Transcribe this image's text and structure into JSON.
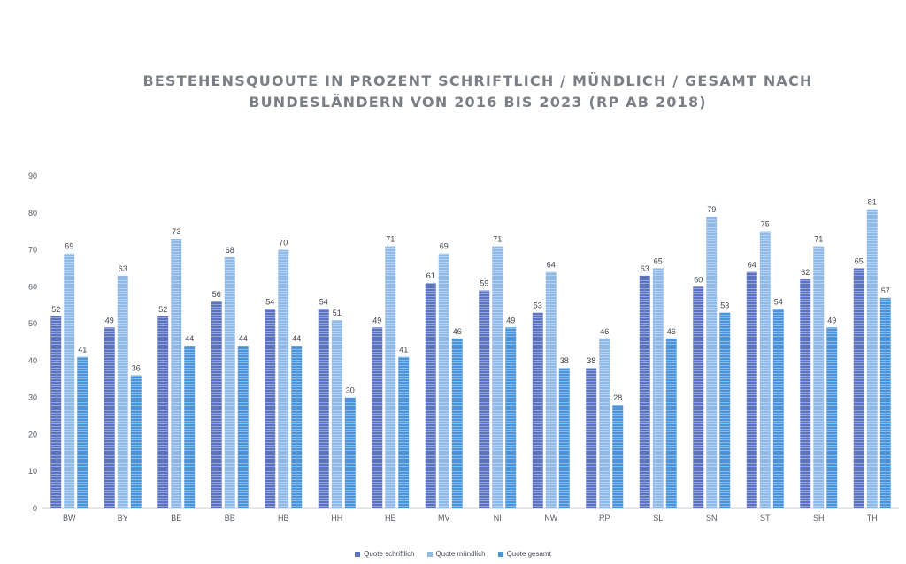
{
  "chart_data": {
    "type": "bar",
    "title": "BESTEHENSQUOUTE IN PROZENT SCHRIFTLICH / MÜNDLICH / GESAMT NACH BUNDESLÄNDERN VON 2016 BIS 2023 (RP AB 2018)",
    "xlabel": "",
    "ylabel": "",
    "ylim": [
      0,
      90
    ],
    "yticks": [
      "0",
      "10",
      "20",
      "30",
      "40",
      "50",
      "60",
      "70",
      "80",
      "90"
    ],
    "grid": false,
    "legend_position": "bottom",
    "categories": [
      "BW",
      "BY",
      "BE",
      "BB",
      "HB",
      "HH",
      "HE",
      "MV",
      "NI",
      "NW",
      "RP",
      "SL",
      "SN",
      "ST",
      "SH",
      "TH"
    ],
    "series": [
      {
        "name": "Quote schriftlich",
        "color": "#5b73c0",
        "values": [
          52,
          49,
          52,
          56,
          54,
          54,
          49,
          61,
          59,
          53,
          38,
          63,
          60,
          64,
          62,
          65
        ],
        "labels": [
          "52",
          "49",
          "52",
          "56",
          "54",
          "54",
          "49",
          "61",
          "59",
          "53",
          "38",
          "63",
          "60",
          "64",
          "62",
          "65"
        ]
      },
      {
        "name": "Quote mündlich",
        "color": "#8fb9e6",
        "values": [
          69,
          63,
          73,
          68,
          70,
          51,
          71,
          69,
          71,
          64,
          46,
          65,
          79,
          75,
          71,
          81
        ],
        "labels": [
          "69",
          "63",
          "73",
          "68",
          "70",
          "51",
          "71",
          "69",
          "71",
          "64",
          "46",
          "65",
          "79",
          "75",
          "71",
          "81"
        ]
      },
      {
        "name": "Quote gesamt",
        "color": "#4a94dc",
        "values": [
          41,
          36,
          44,
          44,
          44,
          30,
          41,
          46,
          49,
          38,
          28,
          46,
          53,
          54,
          49,
          57
        ],
        "labels": [
          "41",
          "36",
          "44",
          "44",
          "44",
          "30",
          "41",
          "46",
          "49",
          "38",
          "28",
          "46",
          "53",
          "54",
          "49",
          "57"
        ]
      }
    ]
  }
}
